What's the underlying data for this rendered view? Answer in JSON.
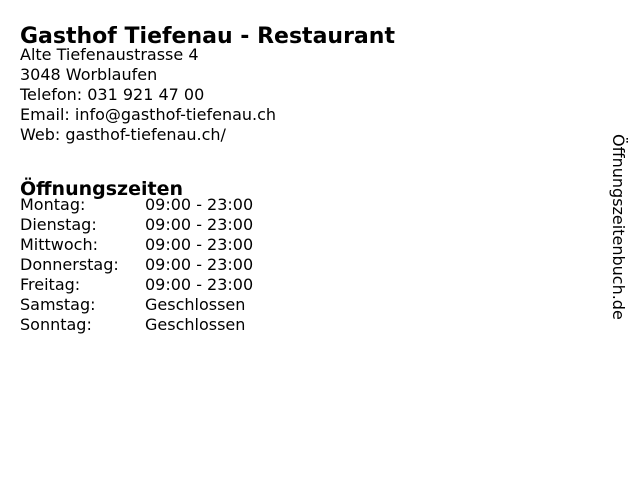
{
  "page": {
    "title": "Gasthof Tiefenau - Restaurant",
    "watermark": "Öffnungszeitenbuch.de"
  },
  "contact": {
    "address_line1": "Alte Tiefenaustrasse 4",
    "address_line2": "3048 Worblaufen",
    "phone_line": "Telefon: 031 921 47 00",
    "email_line": "Email: info@gasthof-tiefenau.ch",
    "web_line": "Web: gasthof-tiefenau.ch/"
  },
  "opening_hours": {
    "heading": "Öffnungszeiten",
    "rows": [
      {
        "day": "Montag:",
        "hours": "09:00 - 23:00"
      },
      {
        "day": "Dienstag:",
        "hours": "09:00 - 23:00"
      },
      {
        "day": "Mittwoch:",
        "hours": "09:00 - 23:00"
      },
      {
        "day": "Donnerstag:",
        "hours": "09:00 - 23:00"
      },
      {
        "day": "Freitag:",
        "hours": "09:00 - 23:00"
      },
      {
        "day": "Samstag:",
        "hours": "Geschlossen"
      },
      {
        "day": "Sonntag:",
        "hours": "Geschlossen"
      }
    ]
  },
  "colors": {
    "background": "#ffffff",
    "text": "#000000"
  }
}
